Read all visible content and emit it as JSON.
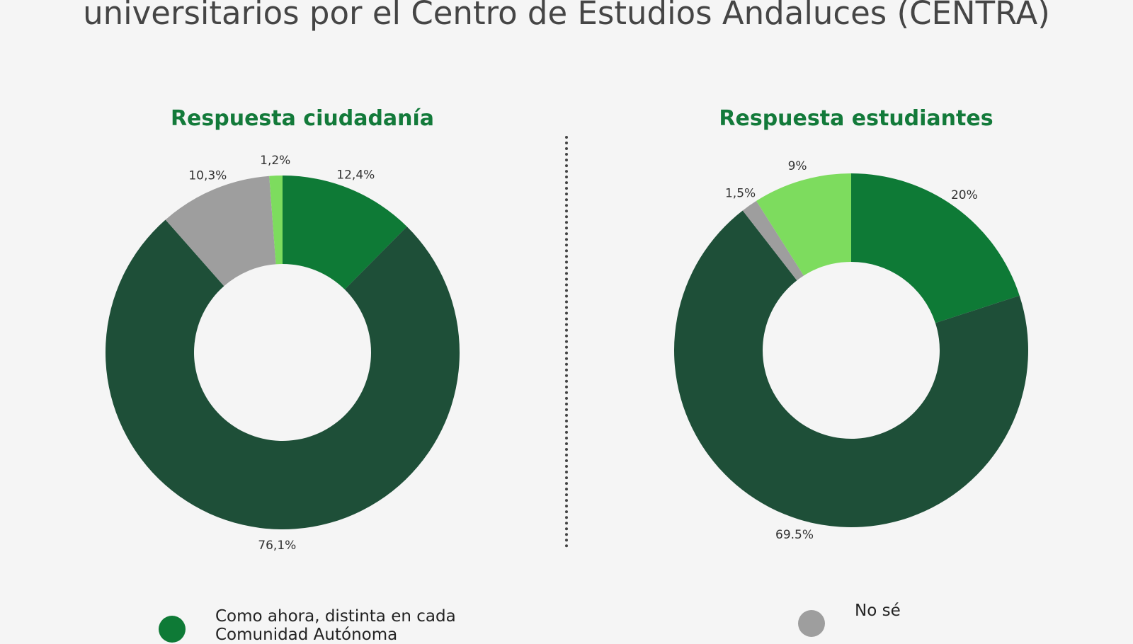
{
  "title": "universitarios por el Centro de Estudios Andaluces (CENTRA)",
  "colors": {
    "como_ahora": "#0e7a36",
    "dark": "#1e4f38",
    "no_se": "#9e9e9e",
    "light": "#7ddc5e"
  },
  "chart_data": [
    {
      "type": "pie",
      "title": "Respuesta ciudadanía",
      "slices": [
        {
          "label": "12,4%",
          "value": 12.4,
          "color": "#0e7a36"
        },
        {
          "label": "76,1%",
          "value": 76.1,
          "color": "#1e4f38"
        },
        {
          "label": "10,3%",
          "value": 10.3,
          "color": "#9e9e9e"
        },
        {
          "label": "1,2%",
          "value": 1.2,
          "color": "#7ddc5e"
        }
      ]
    },
    {
      "type": "pie",
      "title": "Respuesta estudiantes",
      "slices": [
        {
          "label": "20%",
          "value": 20,
          "color": "#0e7a36"
        },
        {
          "label": "69.5%",
          "value": 69.5,
          "color": "#1e4f38"
        },
        {
          "label": "1,5%",
          "value": 1.5,
          "color": "#9e9e9e"
        },
        {
          "label": "9%",
          "value": 9,
          "color": "#7ddc5e"
        }
      ]
    }
  ],
  "legend": [
    {
      "label": "Como ahora, distinta en cada Comunidad Autónoma",
      "color": "#0e7a36"
    },
    {
      "label": "No sé",
      "color": "#9e9e9e"
    }
  ]
}
